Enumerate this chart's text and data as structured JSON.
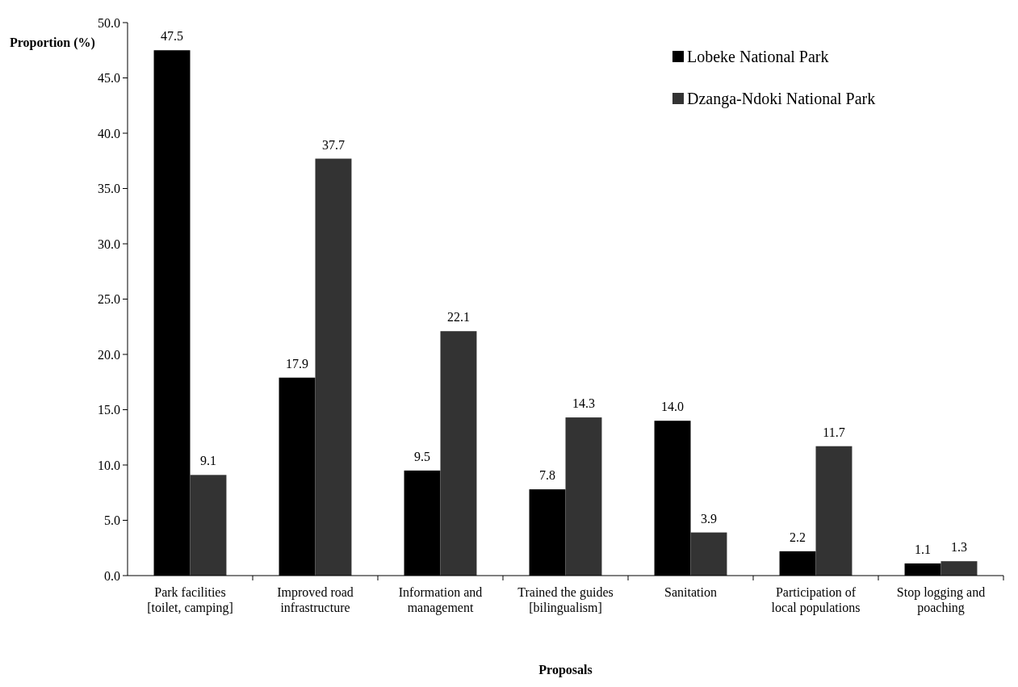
{
  "chart_data": {
    "type": "bar",
    "xlabel": "Proposals",
    "ylabel": "Proportion (%)",
    "categories": [
      "Park facilities [toilet, camping]",
      "Improved road infrastructure",
      "Information and management",
      "Trained the guides [bilingualism]",
      "Sanitation",
      "Participation of local populations",
      "Stop logging and poaching"
    ],
    "series": [
      {
        "name": "Lobeke National Park",
        "color": "#000000",
        "values": [
          47.5,
          17.9,
          9.5,
          7.8,
          14.0,
          2.2,
          1.1
        ],
        "value_labels": [
          "47.5",
          "17.9",
          "9.5",
          "7.8",
          "14.0",
          "2.2",
          "1.1"
        ]
      },
      {
        "name": "Dzanga-Ndoki National Park",
        "color": "#333333",
        "values": [
          9.1,
          37.7,
          22.1,
          14.3,
          3.9,
          11.7,
          1.3
        ],
        "value_labels": [
          "9.1",
          "37.7",
          "22.1",
          "14.3",
          "3.9",
          "11.7",
          "1.3"
        ]
      }
    ],
    "ylim": [
      0,
      50
    ],
    "yticks": [
      {
        "value": 0,
        "label": "0.0"
      },
      {
        "value": 5,
        "label": "5.0"
      },
      {
        "value": 10,
        "label": "10.0"
      },
      {
        "value": 15,
        "label": "15.0"
      },
      {
        "value": 20,
        "label": "20.0"
      },
      {
        "value": 25,
        "label": "25.0"
      },
      {
        "value": 30,
        "label": "30.0"
      },
      {
        "value": 35,
        "label": "35.0"
      },
      {
        "value": 40,
        "label": "40.0"
      },
      {
        "value": 45,
        "label": "45.0"
      },
      {
        "value": 50,
        "label": "50.0"
      }
    ],
    "grid": false,
    "legend": "top right"
  }
}
